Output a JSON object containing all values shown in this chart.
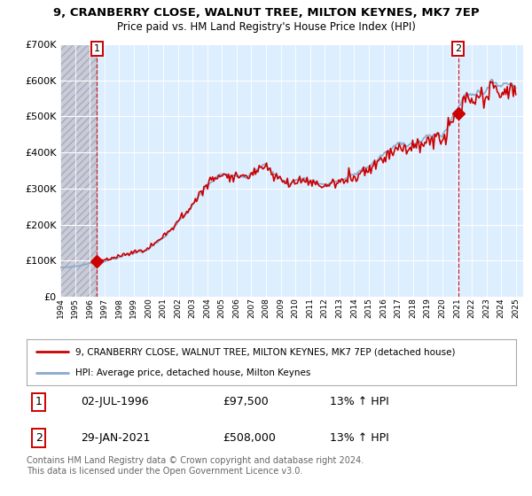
{
  "title_line1": "9, CRANBERRY CLOSE, WALNUT TREE, MILTON KEYNES, MK7 7EP",
  "title_line2": "Price paid vs. HM Land Registry's House Price Index (HPI)",
  "hpi_label": "HPI: Average price, detached house, Milton Keynes",
  "price_label": "9, CRANBERRY CLOSE, WALNUT TREE, MILTON KEYNES, MK7 7EP (detached house)",
  "sale1_date": "02-JUL-1996",
  "sale1_price": "£97,500",
  "sale1_hpi": "13% ↑ HPI",
  "sale2_date": "29-JAN-2021",
  "sale2_price": "£508,000",
  "sale2_hpi": "13% ↑ HPI",
  "copyright": "Contains HM Land Registry data © Crown copyright and database right 2024.\nThis data is licensed under the Open Government Licence v3.0.",
  "price_color": "#cc0000",
  "hpi_color": "#88aacc",
  "background_chart": "#ddeeff",
  "ylim": [
    0,
    700000
  ],
  "xlim_start": 1994.0,
  "xlim_end": 2025.5,
  "sale1_x": 1996.5,
  "sale1_y": 97500,
  "sale2_x": 2021.08,
  "sale2_y": 508000
}
